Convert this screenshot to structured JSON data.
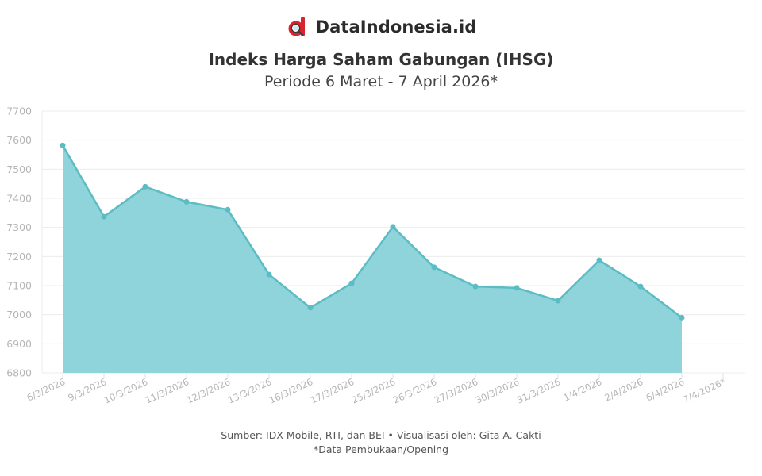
{
  "brand": {
    "name": "DataIndonesia.id",
    "logo_icon": "magnifier-d-logo-icon",
    "logo_color": "#d9232d"
  },
  "header": {
    "title": "Indeks Harga Saham Gabungan (IHSG)",
    "subtitle": "Periode 6 Maret - 7 April 2026*"
  },
  "footer": {
    "source": "Sumber: IDX Mobile, RTI, dan BEI • Visualisasi oleh: Gita A. Cakti",
    "note": "*Data Pembukaan/Opening"
  },
  "colors": {
    "area_fill": "#8fd4da",
    "line": "#5bbcc4",
    "grid": "#ececec",
    "tick_label": "#b5b5b5"
  },
  "chart_data": {
    "type": "area",
    "title": "Indeks Harga Saham Gabungan (IHSG)",
    "subtitle": "Periode 6 Maret - 7 April 2026*",
    "xlabel": "",
    "ylabel": "",
    "categories": [
      "6/3/2026",
      "9/3/2026",
      "10/3/2026",
      "11/3/2026",
      "12/3/2026",
      "13/3/2026",
      "16/3/2026",
      "17/3/2026",
      "25/3/2026",
      "26/3/2026",
      "27/3/2026",
      "30/3/2026",
      "31/3/2026",
      "1/4/2026",
      "2/4/2026",
      "6/4/2026",
      "7/4/2026*"
    ],
    "series": [
      {
        "name": "IHSG",
        "values": [
          7582,
          7337,
          7440,
          7388,
          7361,
          7138,
          7024,
          7108,
          7302,
          7163,
          7097,
          7092,
          7048,
          7187,
          7097,
          6990,
          null
        ]
      }
    ],
    "ylim": [
      6800,
      7700
    ],
    "yticks": [
      6800,
      6900,
      7000,
      7100,
      7200,
      7300,
      7400,
      7500,
      7600,
      7700
    ],
    "grid": true,
    "legend": "none"
  }
}
